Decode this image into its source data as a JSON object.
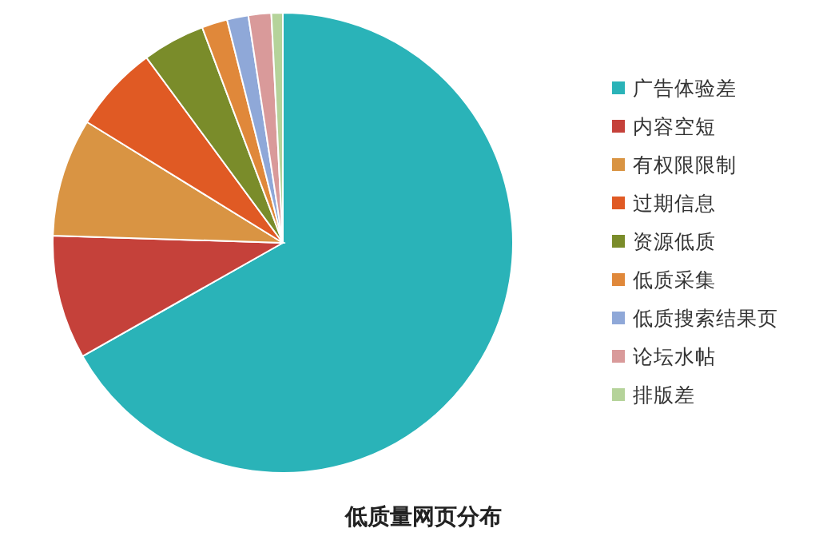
{
  "chart_data": {
    "type": "pie",
    "title": "低质量网页分布",
    "categories": [
      "广告体验差",
      "内容空短",
      "有权限限制",
      "过期信息",
      "资源低质",
      "低质采集",
      "低质搜索结果页",
      "论坛水帖",
      "排版差"
    ],
    "values": [
      66.8,
      8.7,
      8.3,
      6.1,
      4.4,
      1.8,
      1.5,
      1.6,
      0.8
    ],
    "colors": [
      "#2ab3b8",
      "#c5413a",
      "#d99443",
      "#e05a24",
      "#7a8c2a",
      "#e0883a",
      "#8fa8d8",
      "#d99a9a",
      "#b5d39a"
    ],
    "legend": "right"
  }
}
